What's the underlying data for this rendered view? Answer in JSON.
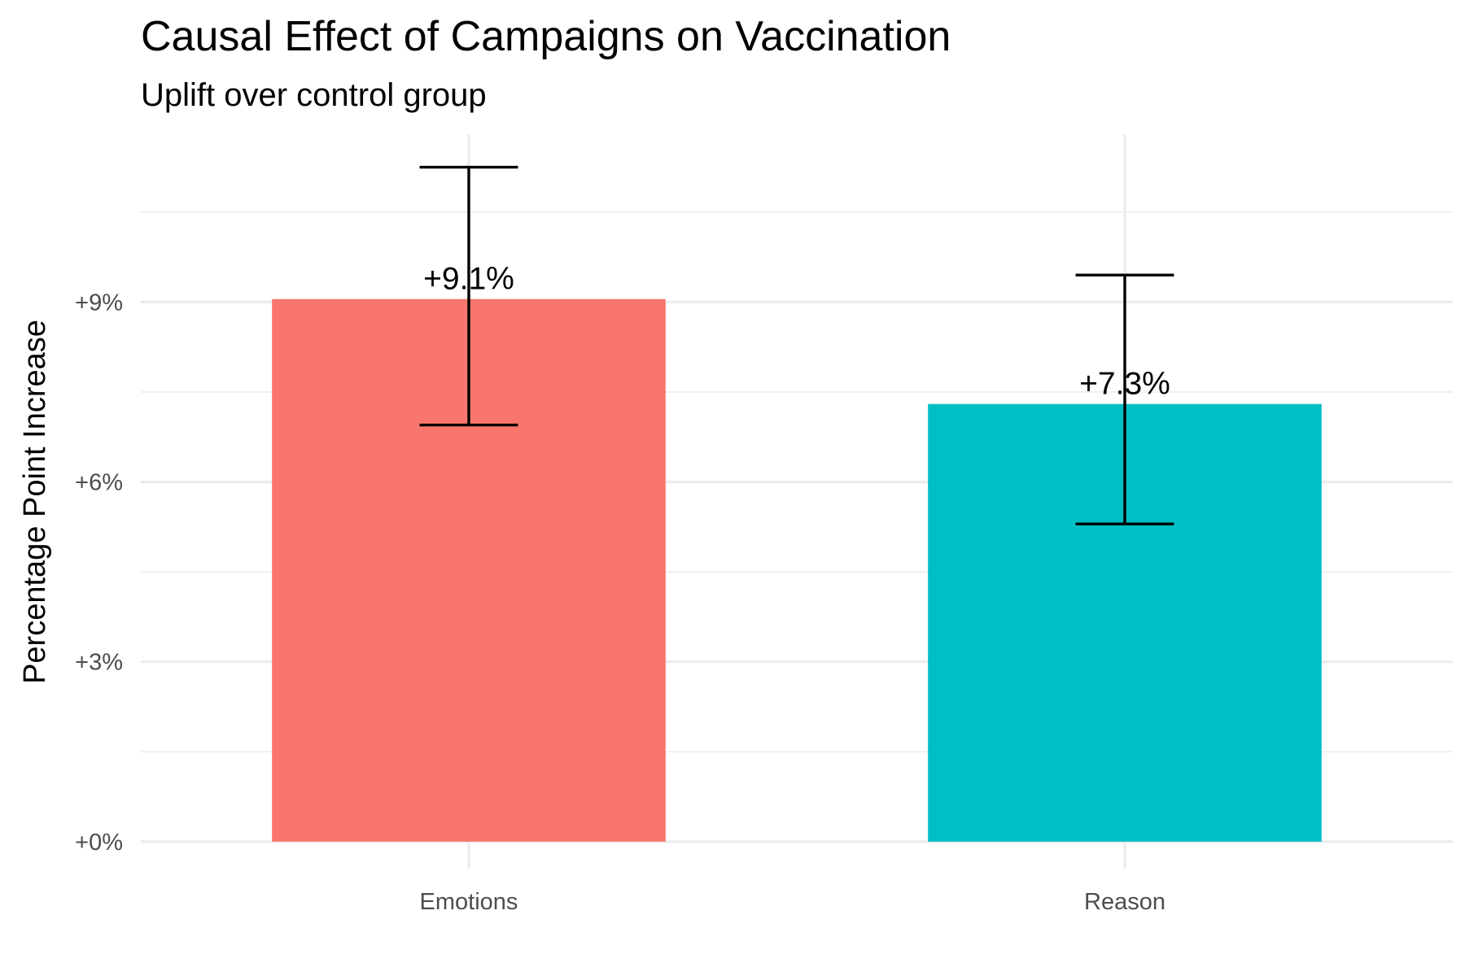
{
  "chart_data": {
    "type": "bar",
    "title": "Causal Effect of Campaigns on Vaccination",
    "subtitle": "Uplift over control group",
    "xlabel": "",
    "ylabel": "Percentage Point Increase",
    "categories": [
      "Emotions",
      "Reason"
    ],
    "values": [
      9.05,
      7.3
    ],
    "data_labels": [
      "+9.1%",
      "+7.3%"
    ],
    "error_bars": [
      {
        "low": 6.95,
        "high": 11.25
      },
      {
        "low": 5.3,
        "high": 9.45
      }
    ],
    "colors": [
      "#F8766D",
      "#00BFC4"
    ],
    "ylim": [
      -0.45,
      11.8
    ],
    "yticks": [
      0,
      3,
      6,
      9
    ],
    "ytick_labels": [
      "+0%",
      "+3%",
      "+6%",
      "+9%"
    ],
    "grid": true,
    "legend": "none"
  }
}
